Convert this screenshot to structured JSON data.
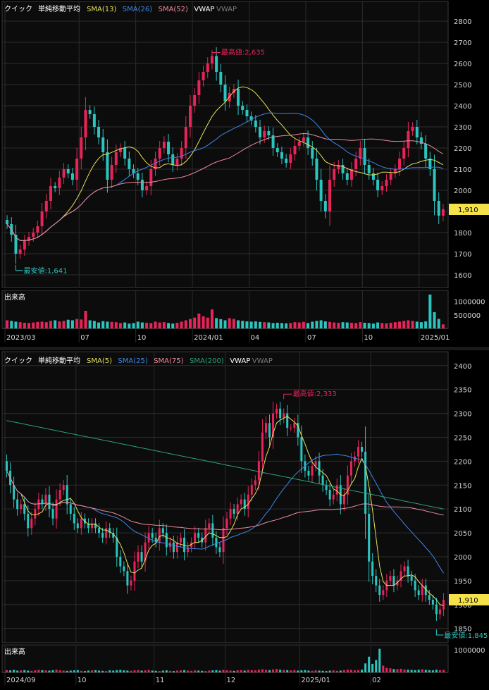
{
  "colors": {
    "bg": "#000000",
    "plot_bg": "#0c0c0c",
    "grid": "#2b2b2b",
    "up": "#e8245a",
    "down": "#2bc5c0",
    "sma_short": "#e6e05a",
    "sma_mid": "#3f86e8",
    "sma_long": "#ef8a9c",
    "sma_200": "#2e9e79",
    "label_white": "#ffffff",
    "label_dim": "#7a7a7a",
    "price_tag_bg": "#f5e24a"
  },
  "chart_data": [
    {
      "id": "weekly",
      "type": "candlestick",
      "legend": [
        {
          "text": "クイック",
          "color": "#ffffff"
        },
        {
          "text": "単純移動平均",
          "color": "#ffffff"
        },
        {
          "text": "SMA(13)",
          "color": "#e6e05a"
        },
        {
          "text": "SMA(26)",
          "color": "#3f86e8"
        },
        {
          "text": "SMA(52)",
          "color": "#ef8a9c"
        },
        {
          "text": "VWAP",
          "color": "#ffffff"
        },
        {
          "text": "VWAP",
          "color": "#7a7a7a"
        }
      ],
      "ylim": [
        1540,
        2840
      ],
      "y_ticks": [
        1600,
        1700,
        1800,
        1900,
        2000,
        2100,
        2200,
        2300,
        2400,
        2500,
        2600,
        2700,
        2800
      ],
      "y_tick_labels": [
        "1600",
        "1700",
        "1800",
        "1900",
        "2000",
        "2100",
        "2200",
        "2300",
        "2400",
        "2500",
        "2600",
        "2700",
        "2800"
      ],
      "x_ticks": [
        {
          "index": 0,
          "label": "2023/03"
        },
        {
          "index": 17,
          "label": "07"
        },
        {
          "index": 30,
          "label": "10"
        },
        {
          "index": 43,
          "label": "2024/01"
        },
        {
          "index": 56,
          "label": "04"
        },
        {
          "index": 69,
          "label": "07"
        },
        {
          "index": 82,
          "label": "10"
        },
        {
          "index": 95,
          "label": "2025/01"
        }
      ],
      "volume_label": "出来高",
      "volume_ticks": [
        500000,
        1000000
      ],
      "volume_tick_labels": [
        "500000",
        "1000000"
      ],
      "volume_max": 1300000,
      "last_price": "1,910",
      "annotations": [
        {
          "kind": "high",
          "text": "最高値:2,635",
          "index": 47,
          "value": 2635
        },
        {
          "kind": "low",
          "text": "最安値:1,641",
          "index": 2,
          "value": 1641
        }
      ],
      "closes": [
        1840,
        1790,
        1700,
        1720,
        1760,
        1780,
        1800,
        1830,
        1900,
        1950,
        2020,
        2010,
        2060,
        2100,
        2080,
        2050,
        2150,
        2250,
        2380,
        2360,
        2300,
        2250,
        2180,
        2050,
        2120,
        2180,
        2200,
        2150,
        2100,
        2080,
        2050,
        2000,
        2020,
        2100,
        2150,
        2200,
        2230,
        2170,
        2120,
        2150,
        2200,
        2300,
        2400,
        2450,
        2520,
        2560,
        2600,
        2635,
        2560,
        2500,
        2420,
        2460,
        2480,
        2400,
        2380,
        2350,
        2330,
        2300,
        2250,
        2280,
        2260,
        2200,
        2180,
        2150,
        2130,
        2170,
        2210,
        2230,
        2250,
        2200,
        2150,
        2050,
        1950,
        1900,
        2050,
        2100,
        2120,
        2080,
        2050,
        2100,
        2150,
        2200,
        2120,
        2080,
        2050,
        2000,
        2020,
        2050,
        2080,
        2100,
        2150,
        2200,
        2280,
        2300,
        2250,
        2220,
        2150,
        2100,
        1950,
        1880,
        1910
      ],
      "volumes": [
        300000,
        280000,
        250000,
        230000,
        210000,
        200000,
        220000,
        240000,
        250000,
        230000,
        280000,
        300000,
        260000,
        280000,
        320000,
        300000,
        350000,
        330000,
        650000,
        300000,
        280000,
        220000,
        270000,
        250000,
        240000,
        230000,
        200000,
        220000,
        180000,
        200000,
        250000,
        220000,
        210000,
        200000,
        250000,
        220000,
        230000,
        200000,
        180000,
        210000,
        250000,
        300000,
        350000,
        400000,
        550000,
        450000,
        400000,
        700000,
        380000,
        340000,
        300000,
        380000,
        350000,
        300000,
        280000,
        260000,
        250000,
        260000,
        240000,
        230000,
        220000,
        200000,
        210000,
        200000,
        190000,
        200000,
        230000,
        220000,
        240000,
        200000,
        250000,
        280000,
        300000,
        260000,
        240000,
        220000,
        210000,
        230000,
        220000,
        210000,
        200000,
        230000,
        210000,
        200000,
        180000,
        220000,
        200000,
        190000,
        210000,
        230000,
        250000,
        280000,
        300000,
        280000,
        250000,
        230000,
        260000,
        1250000,
        600000,
        350000,
        150000
      ]
    },
    {
      "id": "daily",
      "type": "candlestick",
      "legend": [
        {
          "text": "クイック",
          "color": "#ffffff"
        },
        {
          "text": "単純移動平均",
          "color": "#ffffff"
        },
        {
          "text": "SMA(5)",
          "color": "#e6e05a"
        },
        {
          "text": "SMA(25)",
          "color": "#3f86e8"
        },
        {
          "text": "SMA(75)",
          "color": "#ef8a9c"
        },
        {
          "text": "SMA(200)",
          "color": "#2e9e79"
        },
        {
          "text": "VWAP",
          "color": "#ffffff"
        },
        {
          "text": "VWAP",
          "color": "#7a7a7a"
        }
      ],
      "ylim": [
        1820,
        2410
      ],
      "y_ticks": [
        1850,
        1900,
        1950,
        2000,
        2050,
        2100,
        2150,
        2200,
        2250,
        2300,
        2350,
        2400
      ],
      "y_tick_labels": [
        "1850",
        "1900",
        "1950",
        "2000",
        "2050",
        "2100",
        "2150",
        "2200",
        "2250",
        "2300",
        "2350",
        "2400"
      ],
      "x_ticks": [
        {
          "index": 0,
          "label": "2024/09"
        },
        {
          "index": 20,
          "label": "10"
        },
        {
          "index": 42,
          "label": "11"
        },
        {
          "index": 62,
          "label": "12"
        },
        {
          "index": 83,
          "label": "2025/01"
        },
        {
          "index": 103,
          "label": "02"
        }
      ],
      "volume_label": "出来高",
      "volume_ticks": [
        1000000
      ],
      "volume_tick_labels": [
        "1000000"
      ],
      "volume_max": 1100000,
      "last_price": "1,910",
      "annotations": [
        {
          "kind": "high",
          "text": "最高値:2,333",
          "index": 78,
          "value": 2333
        },
        {
          "kind": "low",
          "text": "最安値:1,845",
          "index": 121,
          "value": 1845
        }
      ],
      "closes": [
        2180,
        2150,
        2120,
        2100,
        2110,
        2090,
        2060,
        2080,
        2100,
        2120,
        2110,
        2130,
        2100,
        2080,
        2120,
        2140,
        2150,
        2110,
        2090,
        2070,
        2060,
        2080,
        2070,
        2060,
        2070,
        2060,
        2050,
        2040,
        2060,
        2050,
        2040,
        2000,
        1980,
        1970,
        1940,
        1950,
        1990,
        2010,
        1990,
        2030,
        2050,
        2040,
        2030,
        2060,
        2050,
        2020,
        2030,
        2010,
        2030,
        2040,
        2010,
        2020,
        2030,
        2050,
        2040,
        2030,
        2060,
        2070,
        2040,
        2020,
        2010,
        2060,
        2080,
        2100,
        2090,
        2110,
        2120,
        2100,
        2130,
        2150,
        2160,
        2200,
        2260,
        2280,
        2250,
        2300,
        2310,
        2290,
        2300,
        2270,
        2270,
        2280,
        2250,
        2200,
        2180,
        2170,
        2190,
        2200,
        2170,
        2150,
        2140,
        2120,
        2130,
        2150,
        2110,
        2130,
        2170,
        2200,
        2210,
        2230,
        2220,
        2090,
        1990,
        1960,
        1940,
        1920,
        1930,
        1950,
        1960,
        1940,
        1950,
        1970,
        1980,
        1960,
        1950,
        1930,
        1920,
        1940,
        1920,
        1910,
        1900,
        1880,
        1890,
        1910
      ],
      "volumes": [
        100000,
        90000,
        110000,
        80000,
        90000,
        100000,
        80000,
        70000,
        90000,
        110000,
        100000,
        90000,
        80000,
        100000,
        120000,
        90000,
        80000,
        70000,
        80000,
        90000,
        100000,
        70000,
        60000,
        80000,
        90000,
        100000,
        80000,
        70000,
        60000,
        90000,
        80000,
        100000,
        110000,
        90000,
        80000,
        70000,
        90000,
        100000,
        80000,
        90000,
        110000,
        80000,
        70000,
        60000,
        80000,
        90000,
        70000,
        60000,
        80000,
        90000,
        100000,
        80000,
        70000,
        90000,
        80000,
        70000,
        60000,
        80000,
        90000,
        100000,
        80000,
        110000,
        90000,
        80000,
        70000,
        90000,
        100000,
        80000,
        110000,
        100000,
        90000,
        120000,
        140000,
        110000,
        100000,
        130000,
        150000,
        120000,
        110000,
        100000,
        90000,
        100000,
        80000,
        90000,
        100000,
        80000,
        70000,
        90000,
        80000,
        70000,
        60000,
        80000,
        90000,
        70000,
        80000,
        100000,
        120000,
        110000,
        90000,
        100000,
        120000,
        400000,
        700000,
        380000,
        550000,
        1050000,
        300000,
        200000,
        180000,
        150000,
        140000,
        160000,
        130000,
        120000,
        110000,
        100000,
        120000,
        140000,
        110000,
        100000,
        90000,
        120000,
        100000,
        110000
      ]
    }
  ]
}
